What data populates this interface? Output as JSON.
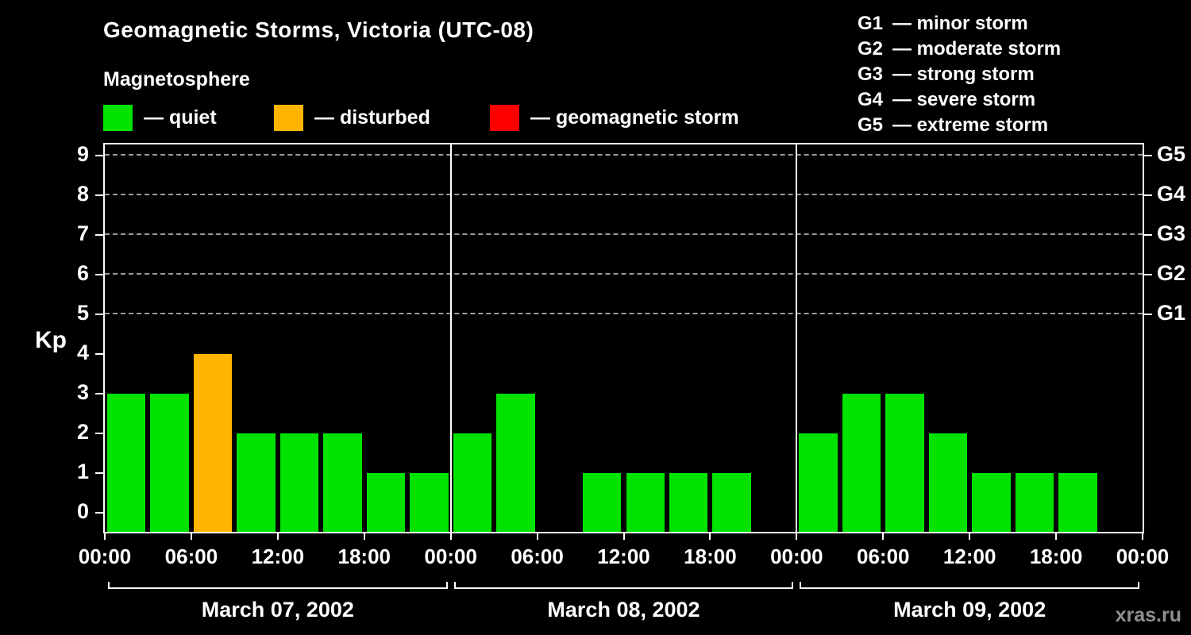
{
  "title": "Geomagnetic Storms, Victoria (UTC-08)",
  "subtitle": "Magnetosphere",
  "legend": {
    "quiet": {
      "label": "— quiet",
      "color": "#00e300"
    },
    "disturbed": {
      "label": "— disturbed",
      "color": "#ffb400"
    },
    "storm": {
      "label": "— geomagnetic storm",
      "color": "#ff0000"
    }
  },
  "storm_scale": [
    {
      "code": "G1",
      "label": "— minor storm"
    },
    {
      "code": "G2",
      "label": "— moderate storm"
    },
    {
      "code": "G3",
      "label": "— strong storm"
    },
    {
      "code": "G4",
      "label": "— severe storm"
    },
    {
      "code": "G5",
      "label": "— extreme storm"
    }
  ],
  "watermark": "xras.ru",
  "chart_data": {
    "type": "bar",
    "title": "Geomagnetic Storms, Victoria (UTC-08)",
    "ylabel": "Kp",
    "ylim": [
      0,
      9
    ],
    "yticks": [
      0,
      1,
      2,
      3,
      4,
      5,
      6,
      7,
      8,
      9
    ],
    "gridlines_kp": [
      5,
      6,
      7,
      8,
      9
    ],
    "right_axis": [
      {
        "code": "G5",
        "kp": 9
      },
      {
        "code": "G4",
        "kp": 8
      },
      {
        "code": "G3",
        "kp": 7
      },
      {
        "code": "G2",
        "kp": 6
      },
      {
        "code": "G1",
        "kp": 5
      }
    ],
    "x_ticks": [
      "00:00",
      "06:00",
      "12:00",
      "18:00",
      "00:00",
      "06:00",
      "12:00",
      "18:00",
      "00:00",
      "06:00",
      "12:00",
      "18:00",
      "00:00"
    ],
    "slot_hours": 3,
    "color_rules": {
      "quiet_max": 3,
      "disturbed_max": 4
    },
    "days": [
      {
        "date": "March 07, 2002",
        "values": [
          3,
          3,
          4,
          2,
          2,
          2,
          1,
          1
        ]
      },
      {
        "date": "March 08, 2002",
        "values": [
          2,
          3,
          0,
          1,
          1,
          1,
          1,
          0
        ]
      },
      {
        "date": "March 09, 2002",
        "values": [
          2,
          3,
          3,
          2,
          1,
          1,
          1,
          0
        ]
      }
    ]
  }
}
